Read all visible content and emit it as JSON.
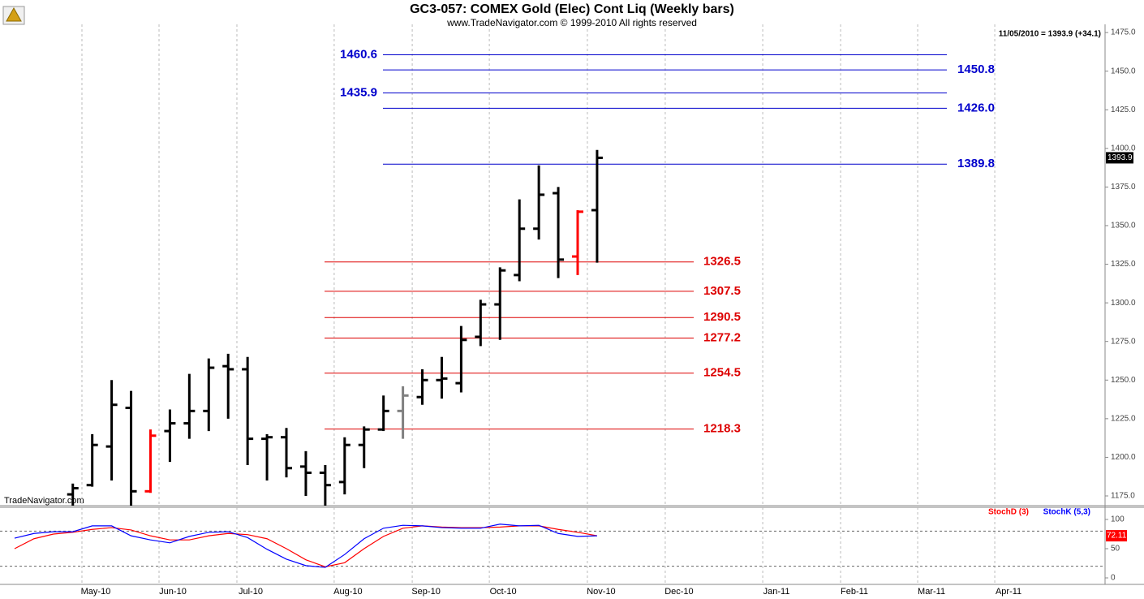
{
  "chart_data": [
    {
      "type": "ohlc",
      "title": "GC3-057:  COMEX Gold (Elec) Cont Liq  (Weekly bars)",
      "subtitle": "www.TradeNavigator.com © 1999-2010 All rights reserved",
      "status": "11/05/2010 = 1393.9 (+34.1)",
      "watermark": "TradeNavigator.com",
      "categories": [
        null,
        null,
        null,
        null,
        null,
        null,
        null,
        null,
        null,
        null,
        null,
        null,
        null,
        null,
        null,
        null,
        null,
        null,
        null,
        null,
        null,
        null,
        null,
        null,
        null,
        null,
        null,
        null,
        null,
        null,
        null
      ],
      "open": [
        null,
        null,
        null,
        1176,
        1182,
        1207,
        1232,
        1178,
        1217,
        1222,
        1230,
        1259,
        1257,
        1212,
        1213,
        1194,
        1190,
        1184,
        1208,
        1218,
        1230,
        1239,
        1250,
        1248,
        1278,
        1299,
        1318,
        1348,
        1371,
        1330,
        1360
      ],
      "high": [
        null,
        null,
        null,
        1183,
        1215,
        1250,
        1243,
        1218,
        1231,
        1254,
        1264,
        1267,
        1265,
        1215,
        1219,
        1204,
        1195,
        1213,
        1220,
        1240,
        1246,
        1257,
        1265,
        1285,
        1302,
        1323,
        1367,
        1389,
        1375,
        1360,
        1399
      ],
      "low": [
        null,
        null,
        null,
        1168,
        1181,
        1185,
        1168,
        1177,
        1197,
        1212,
        1217,
        1225,
        1195,
        1185,
        1187,
        1175,
        1168,
        1176,
        1193,
        1217,
        1212,
        1234,
        1238,
        1242,
        1272,
        1276,
        1314,
        1341,
        1316,
        1318,
        1326
      ],
      "close": [
        null,
        null,
        null,
        1180,
        1208,
        1234,
        1178,
        1214,
        1222,
        1230,
        1258,
        1257,
        1212,
        1213,
        1193,
        1190,
        1182,
        1208,
        1218,
        1230,
        1240,
        1250,
        1251,
        1276,
        1299,
        1321,
        1348,
        1370,
        1328,
        1359,
        1393.9
      ],
      "bar_colors": [
        null,
        null,
        null,
        "#000000",
        "#000000",
        "#000000",
        "#000000",
        "#ff0000",
        "#000000",
        "#000000",
        "#000000",
        "#000000",
        "#000000",
        "#000000",
        "#000000",
        "#000000",
        "#000000",
        "#000000",
        "#000000",
        "#000000",
        "#808080",
        "#000000",
        "#000000",
        "#000000",
        "#000000",
        "#000000",
        "#000000",
        "#000000",
        "#000000",
        "#ff0000",
        "#000000"
      ],
      "xlim": [
        -0.75,
        56.16
      ],
      "xticks": [
        {
          "value": 3.47,
          "label": "May-10"
        },
        {
          "value": 7.44,
          "label": "Jun-10"
        },
        {
          "value": 11.45,
          "label": "Jul-10"
        },
        {
          "value": 16.46,
          "label": "Aug-10"
        },
        {
          "value": 20.48,
          "label": "Sep-10"
        },
        {
          "value": 24.45,
          "label": "Oct-10"
        },
        {
          "value": 29.5,
          "label": "Nov-10"
        },
        {
          "value": 33.51,
          "label": "Dec-10"
        },
        {
          "value": 38.53,
          "label": "Jan-11"
        },
        {
          "value": 42.54,
          "label": "Feb-11"
        },
        {
          "value": 46.51,
          "label": "Mar-11"
        },
        {
          "value": 50.48,
          "label": "Apr-11"
        }
      ],
      "ylim": [
        1168.7,
        1480.3
      ],
      "yticks": [
        {
          "value": 1175,
          "label": "1175.0"
        },
        {
          "value": 1200,
          "label": "1200.0"
        },
        {
          "value": 1225,
          "label": "1225.0"
        },
        {
          "value": 1250,
          "label": "1250.0"
        },
        {
          "value": 1275,
          "label": "1275.0"
        },
        {
          "value": 1300,
          "label": "1300.0"
        },
        {
          "value": 1325,
          "label": "1325.0"
        },
        {
          "value": 1350,
          "label": "1350.0"
        },
        {
          "value": 1375,
          "label": "1375.0"
        },
        {
          "value": 1400,
          "label": "1400.0"
        },
        {
          "value": 1425,
          "label": "1425.0"
        },
        {
          "value": 1450,
          "label": "1450.0"
        },
        {
          "value": 1475,
          "label": "1475.0"
        }
      ],
      "target_color": "#0000cc",
      "target_levels": [
        {
          "value": 1460.6,
          "side": "left"
        },
        {
          "value": 1450.8,
          "side": "right"
        },
        {
          "value": 1435.9,
          "side": "left"
        },
        {
          "value": 1426,
          "label": "1426.0",
          "side": "right"
        },
        {
          "value": 1389.8,
          "side": "right"
        }
      ],
      "retracement_color": "#dd0000",
      "retracement_levels": [
        1326.5,
        1307.5,
        1290.5,
        1277.2,
        1254.5,
        1218.3
      ]
    },
    {
      "type": "line",
      "series": [
        {
          "name": "StochD (3)",
          "color": "#ff0000",
          "values": [
            50,
            67,
            75,
            78,
            83,
            86,
            82,
            72,
            65,
            65,
            72,
            76,
            74,
            67,
            50,
            31,
            19,
            26,
            50,
            71,
            85,
            89,
            87,
            86,
            86,
            87,
            89,
            89,
            83,
            78,
            72.11
          ]
        },
        {
          "name": "StochK (5,3)",
          "color": "#0000ff",
          "values": [
            68,
            76,
            79,
            79,
            89,
            89,
            72,
            65,
            60,
            71,
            78,
            79,
            69,
            49,
            32,
            21,
            18,
            40,
            67,
            85,
            90,
            89,
            86,
            85,
            85,
            92,
            89,
            90,
            76,
            71,
            72
          ]
        }
      ],
      "ylim": [
        -11.1,
        120.8
      ],
      "yticks": [
        0,
        50,
        100
      ],
      "levels": [
        20,
        80
      ]
    }
  ]
}
